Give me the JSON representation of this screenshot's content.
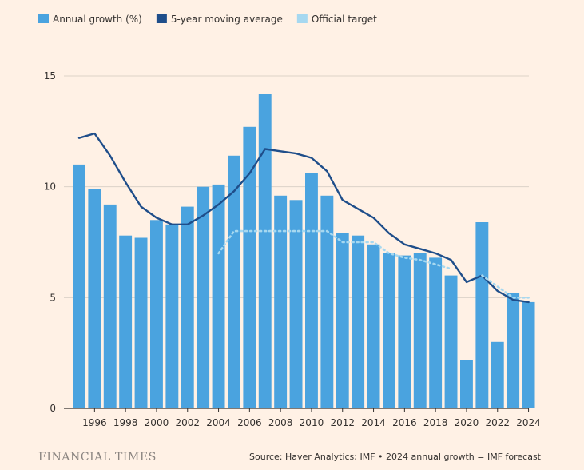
{
  "chart_data": {
    "type": "bar",
    "x": [
      1995,
      1996,
      1997,
      1998,
      1999,
      2000,
      2001,
      2002,
      2003,
      2004,
      2005,
      2006,
      2007,
      2008,
      2009,
      2010,
      2011,
      2012,
      2013,
      2014,
      2015,
      2016,
      2017,
      2018,
      2019,
      2020,
      2021,
      2022,
      2023,
      2024
    ],
    "x_tick_labels": [
      "1996",
      "1998",
      "2000",
      "2002",
      "2004",
      "2006",
      "2008",
      "2010",
      "2012",
      "2014",
      "2016",
      "2018",
      "2020",
      "2022",
      "2024"
    ],
    "series": [
      {
        "name": "Annual growth (%)",
        "type": "bar",
        "color": "#4aa3df",
        "values": [
          11.0,
          9.9,
          9.2,
          7.8,
          7.7,
          8.5,
          8.3,
          9.1,
          10.0,
          10.1,
          11.4,
          12.7,
          14.2,
          9.6,
          9.4,
          10.6,
          9.6,
          7.9,
          7.8,
          7.4,
          7.0,
          6.9,
          7.0,
          6.8,
          6.0,
          2.2,
          8.4,
          3.0,
          5.2,
          4.8
        ]
      },
      {
        "name": "5-year moving average",
        "type": "line",
        "color": "#1f4e8a",
        "values": [
          12.2,
          12.4,
          11.4,
          10.2,
          9.1,
          8.6,
          8.3,
          8.3,
          8.7,
          9.2,
          9.8,
          10.6,
          11.7,
          11.6,
          11.5,
          11.3,
          10.7,
          9.4,
          9.0,
          8.6,
          7.9,
          7.4,
          7.2,
          7.0,
          6.7,
          5.7,
          6.0,
          5.3,
          4.9,
          4.8
        ]
      },
      {
        "name": "Official target",
        "type": "line",
        "style": "dotted",
        "color": "#a6d8f0",
        "values": [
          null,
          null,
          null,
          null,
          null,
          null,
          null,
          null,
          null,
          7.0,
          8.0,
          8.0,
          8.0,
          8.0,
          8.0,
          8.0,
          8.0,
          7.5,
          7.5,
          7.5,
          7.0,
          6.8,
          6.7,
          6.5,
          6.3,
          null,
          6.0,
          5.5,
          5.0,
          5.0
        ]
      }
    ],
    "ylim": [
      0,
      15
    ],
    "y_ticks": [
      0,
      5,
      10,
      15
    ],
    "grid": true,
    "legend_position": "top-left",
    "xlabel": "",
    "ylabel": ""
  },
  "brand": "FINANCIAL TIMES",
  "source": "Source: Haver Analytics; IMF • 2024 annual growth = IMF forecast",
  "colors": {
    "background": "#fff1e5",
    "grid": "#dcd2c8",
    "axis": "#33302e"
  }
}
